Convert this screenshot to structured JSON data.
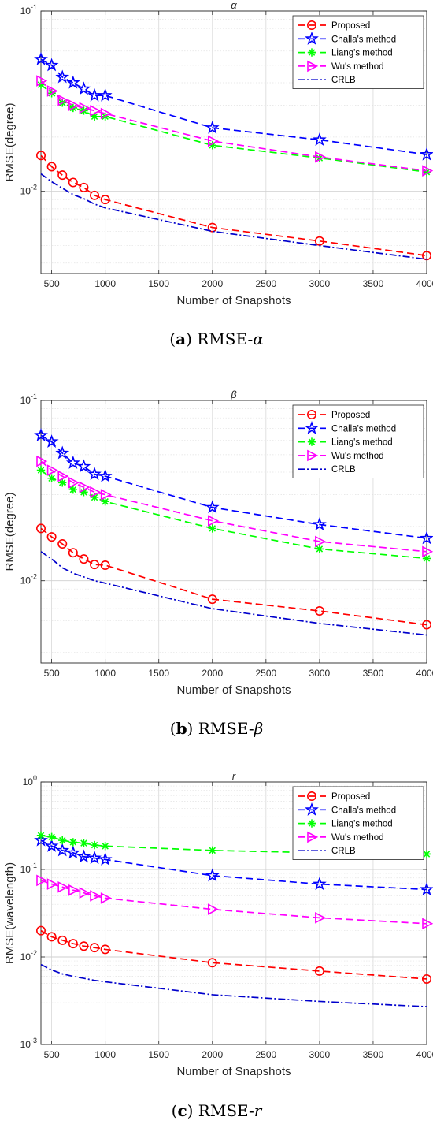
{
  "chart_data": [
    {
      "type": "line",
      "title": "α",
      "xlabel": "Number of Snapshots",
      "ylabel": "RMSE(degree)",
      "yscale": "log",
      "xlim": [
        400,
        4000
      ],
      "ylim": [
        0.0035,
        0.1
      ],
      "x_ticks": [
        500,
        1000,
        1500,
        2000,
        2500,
        3000,
        3500,
        4000
      ],
      "y_ticks": [
        {
          "value": 0.01,
          "base": "10",
          "exp": "-2"
        },
        {
          "value": 0.1,
          "base": "10",
          "exp": "-1"
        }
      ],
      "grid": true,
      "legend": "top-right",
      "caption": {
        "label": "a",
        "text": " RMSE-",
        "symbol": "α"
      },
      "x": [
        400,
        500,
        600,
        700,
        800,
        900,
        1000,
        2000,
        3000,
        4000
      ],
      "series": [
        {
          "name": "Proposed",
          "color": "#ff0000",
          "style": "dashed",
          "marker": "circle",
          "values": [
            0.0158,
            0.0137,
            0.0123,
            0.0112,
            0.0105,
            0.0095,
            0.009,
            0.0063,
            0.0053,
            0.0044
          ]
        },
        {
          "name": "Challa's method",
          "color": "#0000ff",
          "style": "dashed",
          "marker": "star",
          "values": [
            0.054,
            0.05,
            0.043,
            0.04,
            0.037,
            0.034,
            0.034,
            0.0225,
            0.0193,
            0.016
          ]
        },
        {
          "name": "Liang's method",
          "color": "#00ff00",
          "style": "dashed",
          "marker": "asterisk",
          "values": [
            0.039,
            0.035,
            0.031,
            0.029,
            0.028,
            0.026,
            0.026,
            0.018,
            0.0153,
            0.0128
          ]
        },
        {
          "name": "Wu's method",
          "color": "#ff00ff",
          "style": "dashed",
          "marker": "triangle-right",
          "values": [
            0.041,
            0.036,
            0.032,
            0.03,
            0.029,
            0.028,
            0.027,
            0.019,
            0.0155,
            0.013
          ]
        },
        {
          "name": "CRLB",
          "color": "#0000cc",
          "style": "dashdot",
          "marker": "none",
          "values": [
            0.0125,
            0.0113,
            0.0104,
            0.0096,
            0.0091,
            0.0085,
            0.0081,
            0.006,
            0.005,
            0.0042
          ]
        }
      ]
    },
    {
      "type": "line",
      "title": "β",
      "xlabel": "Number of Snapshots",
      "ylabel": "RMSE(degree)",
      "yscale": "log",
      "xlim": [
        400,
        4000
      ],
      "ylim": [
        0.0035,
        0.1
      ],
      "x_ticks": [
        500,
        1000,
        1500,
        2000,
        2500,
        3000,
        3500,
        4000
      ],
      "y_ticks": [
        {
          "value": 0.01,
          "base": "10",
          "exp": "-2"
        },
        {
          "value": 0.1,
          "base": "10",
          "exp": "-1"
        }
      ],
      "grid": true,
      "legend": "top-right",
      "caption": {
        "label": "b",
        "text": " RMSE-",
        "symbol": "β"
      },
      "x": [
        400,
        500,
        600,
        700,
        800,
        900,
        1000,
        2000,
        3000,
        4000
      ],
      "series": [
        {
          "name": "Proposed",
          "color": "#ff0000",
          "style": "dashed",
          "marker": "circle",
          "values": [
            0.0195,
            0.0175,
            0.016,
            0.0143,
            0.0132,
            0.0123,
            0.0122,
            0.0079,
            0.0068,
            0.0057
          ]
        },
        {
          "name": "Challa's method",
          "color": "#0000ff",
          "style": "dashed",
          "marker": "star",
          "values": [
            0.064,
            0.059,
            0.051,
            0.045,
            0.043,
            0.039,
            0.038,
            0.0255,
            0.0205,
            0.0172
          ]
        },
        {
          "name": "Liang's method",
          "color": "#00ff00",
          "style": "dashed",
          "marker": "asterisk",
          "values": [
            0.041,
            0.037,
            0.035,
            0.032,
            0.031,
            0.029,
            0.0275,
            0.0195,
            0.015,
            0.0133
          ]
        },
        {
          "name": "Wu's method",
          "color": "#ff00ff",
          "style": "dashed",
          "marker": "triangle-right",
          "values": [
            0.046,
            0.041,
            0.038,
            0.035,
            0.033,
            0.031,
            0.03,
            0.0215,
            0.0165,
            0.0145
          ]
        },
        {
          "name": "CRLB",
          "color": "#0000cc",
          "style": "dashdot",
          "marker": "none",
          "values": [
            0.0145,
            0.0132,
            0.0118,
            0.011,
            0.0105,
            0.01,
            0.0097,
            0.007,
            0.0058,
            0.005
          ]
        }
      ]
    },
    {
      "type": "line",
      "title": "r",
      "xlabel": "Number of Snapshots",
      "ylabel": "RMSE(wavelength)",
      "yscale": "log",
      "xlim": [
        400,
        4000
      ],
      "ylim": [
        0.001,
        1
      ],
      "x_ticks": [
        500,
        1000,
        1500,
        2000,
        2500,
        3000,
        3500,
        4000
      ],
      "y_ticks": [
        {
          "value": 0.001,
          "base": "10",
          "exp": "-3"
        },
        {
          "value": 0.01,
          "base": "10",
          "exp": "-2"
        },
        {
          "value": 0.1,
          "base": "10",
          "exp": "-1"
        },
        {
          "value": 1,
          "base": "10",
          "exp": "0"
        }
      ],
      "grid": true,
      "legend": "top-right",
      "caption": {
        "label": "c",
        "text": " RMSE-",
        "symbol": "r"
      },
      "x": [
        400,
        500,
        600,
        700,
        800,
        900,
        1000,
        2000,
        3000,
        4000
      ],
      "series": [
        {
          "name": "Proposed",
          "color": "#ff0000",
          "style": "dashed",
          "marker": "circle",
          "values": [
            0.02,
            0.017,
            0.0155,
            0.0142,
            0.0133,
            0.0128,
            0.0122,
            0.0086,
            0.0069,
            0.0056
          ]
        },
        {
          "name": "Challa's method",
          "color": "#0000ff",
          "style": "dashed",
          "marker": "star",
          "values": [
            0.215,
            0.185,
            0.165,
            0.155,
            0.14,
            0.135,
            0.13,
            0.085,
            0.068,
            0.059
          ]
        },
        {
          "name": "Liang's method",
          "color": "#00ff00",
          "style": "dashed",
          "marker": "asterisk",
          "values": [
            0.245,
            0.235,
            0.215,
            0.205,
            0.2,
            0.19,
            0.185,
            0.165,
            0.155,
            0.15
          ]
        },
        {
          "name": "Wu's method",
          "color": "#ff00ff",
          "style": "dashed",
          "marker": "triangle-right",
          "values": [
            0.075,
            0.068,
            0.063,
            0.058,
            0.054,
            0.05,
            0.047,
            0.035,
            0.028,
            0.024
          ]
        },
        {
          "name": "CRLB",
          "color": "#0000cc",
          "style": "dashdot",
          "marker": "none",
          "values": [
            0.0082,
            0.0071,
            0.0064,
            0.006,
            0.0057,
            0.0054,
            0.0052,
            0.0037,
            0.0031,
            0.0027
          ]
        }
      ]
    }
  ]
}
